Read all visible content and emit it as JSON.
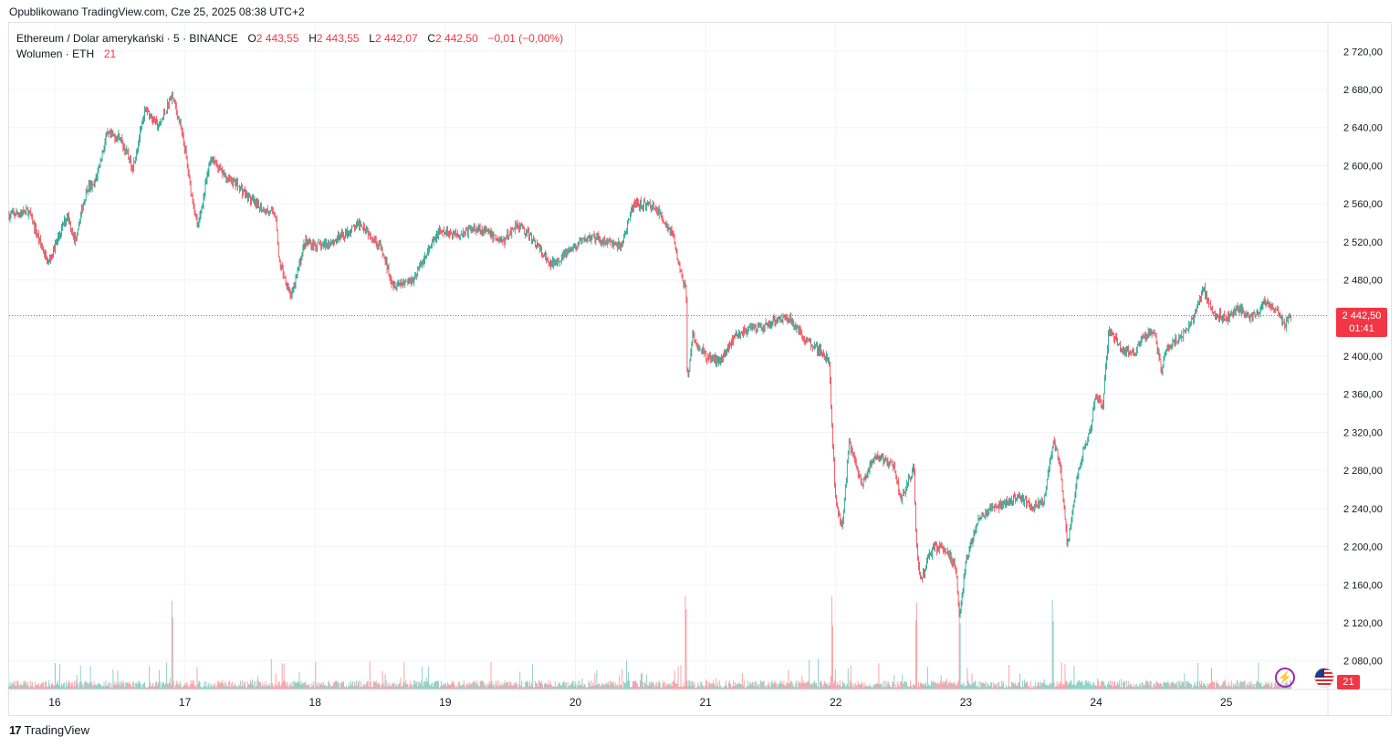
{
  "header": {
    "published": "Opublikowano TradingView.com, Cze 25, 2025 08:38 UTC+2"
  },
  "legend": {
    "symbol": "Ethereum / Dolar amerykański · 5 · BINANCE",
    "o_label": "O",
    "o_value": "2 443,55",
    "h_label": "H",
    "h_value": "2 443,55",
    "l_label": "L",
    "l_value": "2 442,07",
    "c_label": "C",
    "c_value": "2 442,50",
    "change": "−0,01 (−0,00%)",
    "volume_label": "Wolumen · ETH",
    "volume_value": "21"
  },
  "current_price": {
    "price": "2 442,50",
    "countdown": "01:41"
  },
  "volume_badge": "21",
  "footer": {
    "brand": "TradingView",
    "logo": "17"
  },
  "colors": {
    "up": "#089981",
    "down": "#f23645",
    "grid": "#f0f3fa",
    "text": "#131722"
  },
  "icons": [
    "lightning-icon",
    "us-flag-icon",
    "tradingview-logo-icon"
  ],
  "chart_data": {
    "type": "candlestick",
    "title": "Ethereum / Dolar amerykański · 5 · BINANCE",
    "ylim": [
      2050,
      2750
    ],
    "y_ticks": [
      "2 720,00",
      "2 680,00",
      "2 640,00",
      "2 600,00",
      "2 560,00",
      "2 520,00",
      "2 480,00",
      "2 440,00",
      "2 400,00",
      "2 360,00",
      "2 320,00",
      "2 280,00",
      "2 240,00",
      "2 200,00",
      "2 160,00",
      "2 120,00",
      "2 080,00"
    ],
    "y_tick_values": [
      2720,
      2680,
      2640,
      2600,
      2560,
      2520,
      2480,
      2440,
      2400,
      2360,
      2320,
      2280,
      2240,
      2200,
      2160,
      2120,
      2080
    ],
    "x_ticks": [
      "16",
      "17",
      "18",
      "19",
      "20",
      "21",
      "22",
      "23",
      "24",
      "25"
    ],
    "x_tick_days": [
      16,
      17,
      18,
      19,
      20,
      21,
      22,
      23,
      24,
      25
    ],
    "x_range_days": [
      15.65,
      25.78
    ],
    "last_price": 2442.5,
    "price_path": [
      [
        15.65,
        2548
      ],
      [
        15.8,
        2552
      ],
      [
        15.95,
        2497
      ],
      [
        16.1,
        2550
      ],
      [
        16.15,
        2520
      ],
      [
        16.25,
        2578
      ],
      [
        16.3,
        2578
      ],
      [
        16.4,
        2632
      ],
      [
        16.5,
        2630
      ],
      [
        16.6,
        2598
      ],
      [
        16.7,
        2660
      ],
      [
        16.8,
        2640
      ],
      [
        16.9,
        2675
      ],
      [
        16.95,
        2650
      ],
      [
        17.0,
        2618
      ],
      [
        17.05,
        2570
      ],
      [
        17.1,
        2535
      ],
      [
        17.2,
        2610
      ],
      [
        17.3,
        2590
      ],
      [
        17.4,
        2580
      ],
      [
        17.55,
        2558
      ],
      [
        17.7,
        2548
      ],
      [
        17.72,
        2500
      ],
      [
        17.82,
        2462
      ],
      [
        17.92,
        2520
      ],
      [
        18.05,
        2515
      ],
      [
        18.2,
        2525
      ],
      [
        18.35,
        2540
      ],
      [
        18.5,
        2515
      ],
      [
        18.6,
        2475
      ],
      [
        18.75,
        2480
      ],
      [
        18.95,
        2530
      ],
      [
        19.1,
        2528
      ],
      [
        19.25,
        2535
      ],
      [
        19.45,
        2520
      ],
      [
        19.55,
        2540
      ],
      [
        19.7,
        2518
      ],
      [
        19.8,
        2495
      ],
      [
        19.95,
        2510
      ],
      [
        20.1,
        2525
      ],
      [
        20.25,
        2520
      ],
      [
        20.35,
        2515
      ],
      [
        20.45,
        2560
      ],
      [
        20.6,
        2558
      ],
      [
        20.75,
        2528
      ],
      [
        20.8,
        2490
      ],
      [
        20.85,
        2470
      ],
      [
        20.86,
        2372
      ],
      [
        20.9,
        2420
      ],
      [
        21.0,
        2400
      ],
      [
        21.1,
        2395
      ],
      [
        21.25,
        2425
      ],
      [
        21.45,
        2430
      ],
      [
        21.55,
        2440
      ],
      [
        21.65,
        2440
      ],
      [
        21.75,
        2420
      ],
      [
        21.85,
        2410
      ],
      [
        21.95,
        2395
      ],
      [
        21.97,
        2320
      ],
      [
        22.0,
        2245
      ],
      [
        22.05,
        2220
      ],
      [
        22.1,
        2310
      ],
      [
        22.2,
        2265
      ],
      [
        22.3,
        2295
      ],
      [
        22.45,
        2285
      ],
      [
        22.5,
        2250
      ],
      [
        22.6,
        2282
      ],
      [
        22.62,
        2200
      ],
      [
        22.65,
        2165
      ],
      [
        22.75,
        2200
      ],
      [
        22.85,
        2195
      ],
      [
        22.92,
        2180
      ],
      [
        22.95,
        2122
      ],
      [
        23.0,
        2185
      ],
      [
        23.1,
        2230
      ],
      [
        23.2,
        2240
      ],
      [
        23.3,
        2245
      ],
      [
        23.4,
        2255
      ],
      [
        23.5,
        2240
      ],
      [
        23.6,
        2250
      ],
      [
        23.67,
        2310
      ],
      [
        23.72,
        2290
      ],
      [
        23.78,
        2200
      ],
      [
        23.85,
        2270
      ],
      [
        23.9,
        2300
      ],
      [
        23.95,
        2320
      ],
      [
        24.0,
        2360
      ],
      [
        24.05,
        2345
      ],
      [
        24.1,
        2430
      ],
      [
        24.2,
        2405
      ],
      [
        24.3,
        2405
      ],
      [
        24.35,
        2420
      ],
      [
        24.45,
        2425
      ],
      [
        24.5,
        2385
      ],
      [
        24.55,
        2410
      ],
      [
        24.65,
        2420
      ],
      [
        24.75,
        2440
      ],
      [
        24.82,
        2472
      ],
      [
        24.9,
        2445
      ],
      [
        25.0,
        2440
      ],
      [
        25.1,
        2450
      ],
      [
        25.2,
        2440
      ],
      [
        25.3,
        2458
      ],
      [
        25.4,
        2445
      ],
      [
        25.45,
        2432
      ],
      [
        25.5,
        2442.5
      ]
    ],
    "volume_note": "volume histogram along bottom, spikes around day 16.9, 20.85, 21.97, 22.62, 22.95, 23.67"
  }
}
